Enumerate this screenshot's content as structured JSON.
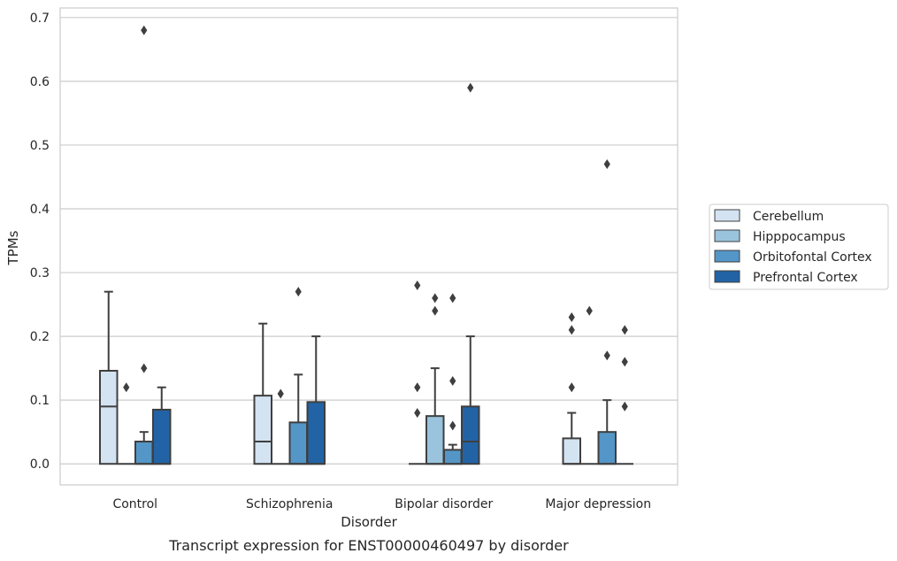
{
  "chart_data": {
    "type": "boxplot",
    "caption": "Transcript expression for ENST00000460497 by disorder",
    "xlabel": "Disorder",
    "ylabel": "TPMs",
    "ylim": [
      -0.033,
      0.715
    ],
    "yticks": [
      0.0,
      0.1,
      0.2,
      0.3,
      0.4,
      0.5,
      0.6,
      0.7
    ],
    "ytick_labels": [
      "0.0",
      "0.1",
      "0.2",
      "0.3",
      "0.4",
      "0.5",
      "0.6",
      "0.7"
    ],
    "grid": "y",
    "legend_position": "right",
    "categories": [
      "Control",
      "Schizophrenia",
      "Bipolar disorder",
      "Major depression"
    ],
    "series": [
      {
        "name": "Cerebellum",
        "color": "#d3e3f2",
        "boxes": [
          {
            "q1": 0,
            "median": 0.09,
            "q3": 0.146,
            "whisker_low": 0,
            "whisker_high": 0.27,
            "outliers": []
          },
          {
            "q1": 0,
            "median": 0.035,
            "q3": 0.107,
            "whisker_low": 0,
            "whisker_high": 0.22,
            "outliers": []
          },
          {
            "q1": 0,
            "median": 0,
            "q3": 0,
            "whisker_low": 0,
            "whisker_high": 0,
            "outliers": [
              0.08,
              0.12,
              0.28
            ]
          },
          {
            "q1": 0,
            "median": 0,
            "q3": 0.04,
            "whisker_low": 0,
            "whisker_high": 0.08,
            "outliers": [
              0.12,
              0.21,
              0.23
            ]
          }
        ]
      },
      {
        "name": "Hipppocampus",
        "color": "#9ac4de",
        "boxes": [
          {
            "q1": 0,
            "median": 0,
            "q3": 0,
            "whisker_low": 0,
            "whisker_high": 0,
            "outliers": [
              0.12
            ]
          },
          {
            "q1": 0,
            "median": 0,
            "q3": 0,
            "whisker_low": 0,
            "whisker_high": 0,
            "outliers": [
              0.11
            ]
          },
          {
            "q1": 0,
            "median": 0,
            "q3": 0.075,
            "whisker_low": 0,
            "whisker_high": 0.15,
            "outliers": [
              0.24,
              0.26
            ]
          },
          {
            "q1": 0,
            "median": 0,
            "q3": 0,
            "whisker_low": 0,
            "whisker_high": 0,
            "outliers": [
              0.24
            ]
          }
        ]
      },
      {
        "name": "Orbitofontal Cortex",
        "color": "#5496c7",
        "boxes": [
          {
            "q1": 0,
            "median": 0,
            "q3": 0.035,
            "whisker_low": 0,
            "whisker_high": 0.05,
            "outliers": [
              0.15,
              0.68
            ]
          },
          {
            "q1": 0,
            "median": 0,
            "q3": 0.065,
            "whisker_low": 0,
            "whisker_high": 0.14,
            "outliers": [
              0.27
            ]
          },
          {
            "q1": 0,
            "median": 0,
            "q3": 0.022,
            "whisker_low": 0,
            "whisker_high": 0.03,
            "outliers": [
              0.06,
              0.13,
              0.26
            ]
          },
          {
            "q1": 0,
            "median": 0,
            "q3": 0.05,
            "whisker_low": 0,
            "whisker_high": 0.1,
            "outliers": [
              0.17,
              0.47
            ]
          }
        ]
      },
      {
        "name": "Prefrontal Cortex",
        "color": "#2263a6",
        "boxes": [
          {
            "q1": 0,
            "median": 0,
            "q3": 0.085,
            "whisker_low": 0,
            "whisker_high": 0.12,
            "outliers": []
          },
          {
            "q1": 0,
            "median": 0,
            "q3": 0.097,
            "whisker_low": 0,
            "whisker_high": 0.2,
            "outliers": []
          },
          {
            "q1": 0,
            "median": 0.035,
            "q3": 0.09,
            "whisker_low": 0,
            "whisker_high": 0.2,
            "outliers": [
              0.59
            ]
          },
          {
            "q1": 0,
            "median": 0,
            "q3": 0,
            "whisker_low": 0,
            "whisker_high": 0,
            "outliers": [
              0.09,
              0.16,
              0.21
            ]
          }
        ]
      }
    ],
    "colors": {
      "grid": "#cccccc",
      "axes_edge": "#cccccc",
      "box_edge": "#3f3f3f"
    }
  }
}
